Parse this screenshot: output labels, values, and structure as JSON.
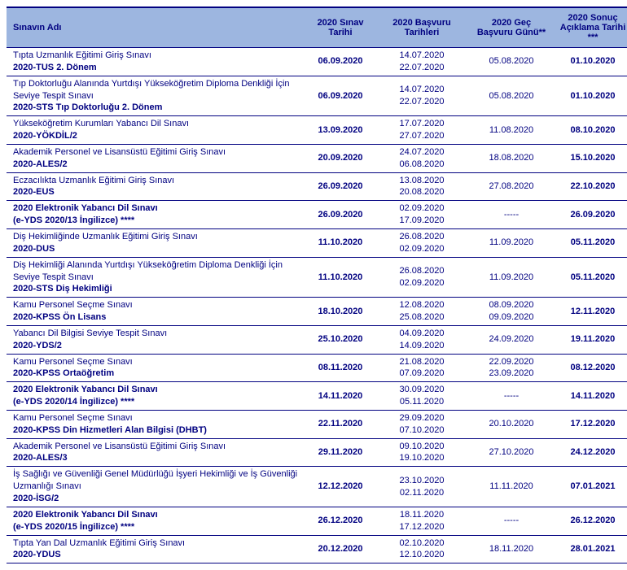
{
  "columns": [
    "Sınavın Adı",
    "2020 Sınav Tarihi",
    "2020 Başvuru Tarihleri",
    "2020 Geç Başvuru Günü**",
    "2020 Sonuç Açıklama Tarihi ***"
  ],
  "rows": [
    {
      "name": "Tıpta Uzmanlık Eğitimi Giriş Sınavı",
      "code": "2020-TUS 2. Dönem",
      "exam_date": "06.09.2020",
      "app_start": "14.07.2020",
      "app_end": "22.07.2020",
      "late": "05.08.2020",
      "result": "01.10.2020"
    },
    {
      "name": "Tıp Doktorluğu Alanında Yurtdışı Yükseköğretim Diploma Denkliği İçin Seviye Tespit Sınavı",
      "code": "2020-STS Tıp Doktorluğu 2. Dönem",
      "exam_date": "06.09.2020",
      "app_start": "14.07.2020",
      "app_end": "22.07.2020",
      "late": "05.08.2020",
      "result": "01.10.2020"
    },
    {
      "name": "Yükseköğretim Kurumları Yabancı Dil Sınavı",
      "code": "2020-YÖKDİL/2",
      "exam_date": "13.09.2020",
      "app_start": "17.07.2020",
      "app_end": "27.07.2020",
      "late": "11.08.2020",
      "result": "08.10.2020"
    },
    {
      "name": "Akademik Personel ve Lisansüstü Eğitimi Giriş Sınavı",
      "code": "2020-ALES/2",
      "exam_date": "20.09.2020",
      "app_start": "24.07.2020",
      "app_end": "06.08.2020",
      "late": "18.08.2020",
      "result": "15.10.2020"
    },
    {
      "name": "Eczacılıkta Uzmanlık Eğitimi Giriş Sınavı",
      "code": "2020-EUS",
      "exam_date": "26.09.2020",
      "app_start": "13.08.2020",
      "app_end": "20.08.2020",
      "late": "27.08.2020",
      "result": "22.10.2020"
    },
    {
      "name": "2020 Elektronik Yabancı Dil Sınavı",
      "code": "(e-YDS 2020/13 İngilizce) ****",
      "name_bold": true,
      "exam_date": "26.09.2020",
      "app_start": "02.09.2020",
      "app_end": "17.09.2020",
      "late": "-----",
      "result": "26.09.2020"
    },
    {
      "name": "Diş Hekimliğinde Uzmanlık Eğitimi Giriş Sınavı",
      "code": "2020-DUS",
      "exam_date": "11.10.2020",
      "app_start": "26.08.2020",
      "app_end": "02.09.2020",
      "late": "11.09.2020",
      "result": "05.11.2020"
    },
    {
      "name": "Diş Hekimliği Alanında Yurtdışı Yükseköğretim Diploma Denkliği İçin Seviye Tespit Sınavı",
      "code": "2020-STS Diş Hekimliği",
      "exam_date": "11.10.2020",
      "app_start": "26.08.2020",
      "app_end": "02.09.2020",
      "late": "11.09.2020",
      "result": "05.11.2020"
    },
    {
      "name": "Kamu Personel Seçme Sınavı",
      "code": "2020-KPSS Ön Lisans",
      "exam_date": "18.10.2020",
      "app_start": "12.08.2020",
      "app_end": "25.08.2020",
      "late": "08.09.2020 09.09.2020",
      "result": "12.11.2020"
    },
    {
      "name": "Yabancı Dil Bilgisi Seviye Tespit Sınavı",
      "code": "2020-YDS/2",
      "exam_date": "25.10.2020",
      "app_start": "04.09.2020",
      "app_end": "14.09.2020",
      "late": "24.09.2020",
      "result": "19.11.2020"
    },
    {
      "name": "Kamu Personel Seçme Sınavı",
      "code": "2020-KPSS Ortaöğretim",
      "exam_date": "08.11.2020",
      "app_start": "21.08.2020",
      "app_end": "07.09.2020",
      "late": "22.09.2020 23.09.2020",
      "result": "08.12.2020"
    },
    {
      "name": "2020 Elektronik Yabancı Dil Sınavı",
      "code": "(e-YDS 2020/14 İngilizce) ****",
      "name_bold": true,
      "exam_date": "14.11.2020",
      "app_start": "30.09.2020",
      "app_end": "05.11.2020",
      "late": "-----",
      "result": "14.11.2020"
    },
    {
      "name": "Kamu Personel Seçme Sınavı",
      "code": "2020-KPSS Din Hizmetleri Alan Bilgisi (DHBT)",
      "exam_date": "22.11.2020",
      "app_start": "29.09.2020",
      "app_end": "07.10.2020",
      "late": "20.10.2020",
      "result": "17.12.2020"
    },
    {
      "name": "Akademik Personel ve Lisansüstü Eğitimi Giriş Sınavı",
      "code": "2020-ALES/3",
      "exam_date": "29.11.2020",
      "app_start": "09.10.2020",
      "app_end": "19.10.2020",
      "late": "27.10.2020",
      "result": "24.12.2020"
    },
    {
      "name": "İş Sağlığı ve Güvenliği Genel Müdürlüğü İşyeri Hekimliği ve İş Güvenliği Uzmanlığı Sınavı",
      "code": "2020-İSG/2",
      "exam_date": "12.12.2020",
      "app_start": "23.10.2020",
      "app_end": "02.11.2020",
      "late": "11.11.2020",
      "result": "07.01.2021"
    },
    {
      "name": "2020 Elektronik Yabancı Dil Sınavı",
      "code": "(e-YDS 2020/15 İngilizce) ****",
      "name_bold": true,
      "exam_date": "26.12.2020",
      "app_start": "18.11.2020",
      "app_end": "17.12.2020",
      "late": "-----",
      "result": "26.12.2020"
    },
    {
      "name": "Tıpta Yan Dal Uzmanlık Eğitimi Giriş Sınavı",
      "code": "2020-YDUS",
      "exam_date": "20.12.2020",
      "app_start": "02.10.2020",
      "app_end": "12.10.2020",
      "late": "18.11.2020",
      "result": "28.01.2021"
    }
  ]
}
